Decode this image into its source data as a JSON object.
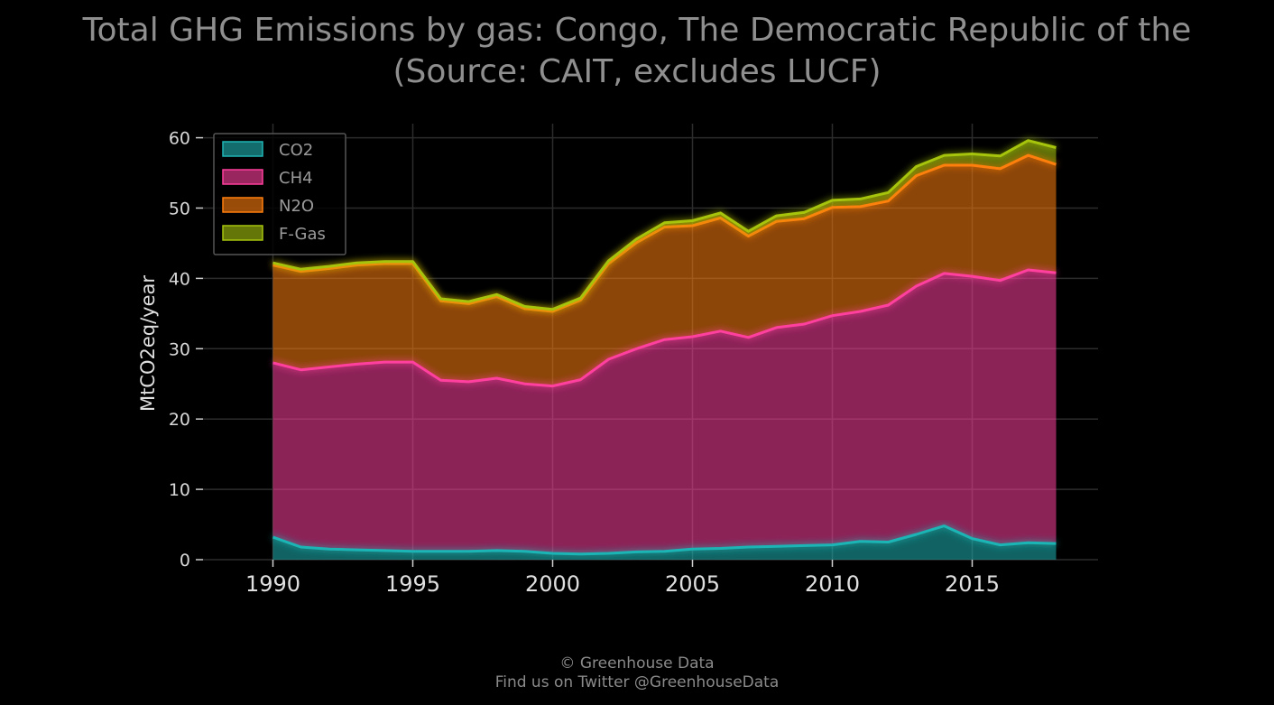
{
  "title_line1": "Total GHG Emissions by gas: Congo, The Democratic Republic of the",
  "title_line2": "(Source: CAIT, excludes LUCF)",
  "footer_line1": "© Greenhouse Data",
  "footer_line2": "Find us on Twitter @GreenhouseData",
  "chart_data": {
    "type": "area",
    "stacked": true,
    "ylabel": "MtCO2eq/year",
    "xlabel": "",
    "xlim": [
      1987.5,
      2019.5
    ],
    "ylim": [
      0,
      62
    ],
    "xticks": [
      1990,
      1995,
      2000,
      2005,
      2010,
      2015
    ],
    "yticks": [
      0,
      10,
      20,
      30,
      40,
      50,
      60
    ],
    "grid": true,
    "legend_position": "top-left",
    "x": [
      1990,
      1991,
      1992,
      1993,
      1994,
      1995,
      1996,
      1997,
      1998,
      1999,
      2000,
      2001,
      2002,
      2003,
      2004,
      2005,
      2006,
      2007,
      2008,
      2009,
      2010,
      2011,
      2012,
      2013,
      2014,
      2015,
      2016,
      2017,
      2018
    ],
    "series": [
      {
        "name": "CO2",
        "color": "#1fb5b5",
        "values": [
          3.2,
          1.8,
          1.5,
          1.4,
          1.3,
          1.2,
          1.2,
          1.2,
          1.3,
          1.2,
          0.9,
          0.8,
          0.9,
          1.1,
          1.2,
          1.5,
          1.6,
          1.8,
          1.9,
          2.0,
          2.1,
          2.6,
          2.5,
          3.6,
          4.8,
          3.0,
          2.1,
          2.4,
          2.3
        ]
      },
      {
        "name": "CH4",
        "color": "#ff3f9e",
        "values": [
          24.8,
          25.2,
          25.9,
          26.4,
          26.8,
          26.9,
          24.3,
          24.1,
          24.5,
          23.8,
          23.8,
          24.8,
          27.6,
          28.9,
          30.1,
          30.2,
          30.9,
          29.8,
          31.1,
          31.5,
          32.6,
          32.7,
          33.7,
          35.3,
          35.9,
          37.3,
          37.6,
          38.8,
          38.5
        ]
      },
      {
        "name": "N2O",
        "color": "#ff7f0e",
        "values": [
          13.9,
          14.0,
          14.0,
          14.1,
          14.0,
          14.0,
          11.3,
          11.1,
          11.6,
          10.7,
          10.6,
          11.3,
          13.6,
          15.1,
          16.0,
          15.8,
          16.1,
          14.4,
          15.1,
          15.0,
          15.4,
          14.9,
          14.8,
          15.7,
          15.4,
          15.8,
          15.9,
          16.3,
          15.4
        ]
      },
      {
        "name": "F-Gas",
        "color": "#a7c40e",
        "values": [
          0.3,
          0.3,
          0.3,
          0.3,
          0.3,
          0.3,
          0.3,
          0.3,
          0.3,
          0.3,
          0.3,
          0.3,
          0.4,
          0.5,
          0.6,
          0.7,
          0.7,
          0.7,
          0.8,
          0.9,
          1.0,
          1.1,
          1.2,
          1.3,
          1.4,
          1.6,
          1.8,
          2.1,
          2.4
        ]
      }
    ]
  }
}
